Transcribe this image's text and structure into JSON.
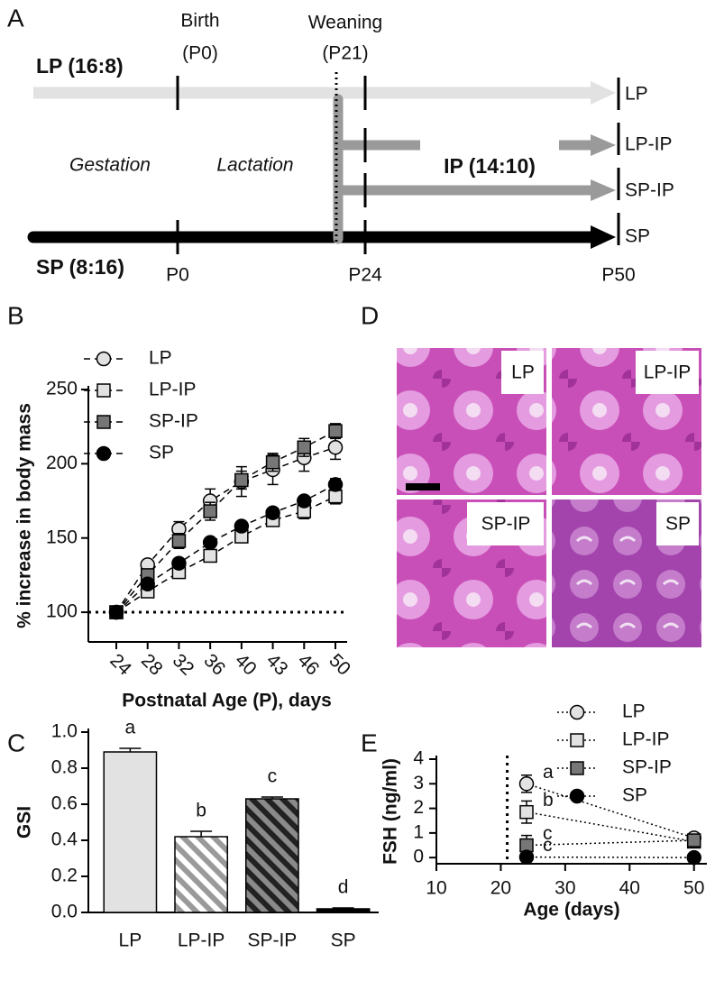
{
  "panel_labels": [
    "A",
    "B",
    "C",
    "D",
    "E"
  ],
  "diagram": {
    "birth": "Birth",
    "birth_day": "(P0)",
    "weaning": "Weaning",
    "weaning_day": "(P21)",
    "lp_photoperiod": "LP (16:8)",
    "gestation": "Gestation",
    "lactation": "Lactation",
    "ip_photoperiod": "IP (14:10)",
    "sp_photoperiod": "SP (8:16)",
    "timepoints": [
      "P0",
      "P24",
      "P50"
    ],
    "groups": [
      "LP",
      "LP-IP",
      "SP-IP",
      "SP"
    ]
  },
  "micrographs": {
    "labels": [
      "LP",
      "LP-IP",
      "SP-IP",
      "SP"
    ]
  },
  "chart_data": [
    {
      "type": "line",
      "ylabel": "% increase in body mass",
      "xlabel": "Postnatal Age (P), days",
      "categories": [
        "24",
        "28",
        "32",
        "36",
        "40",
        "43",
        "46",
        "50"
      ],
      "ylim": [
        80,
        250
      ],
      "yticks": [
        100,
        150,
        200,
        250
      ],
      "hline": 100,
      "line_style": "dashed",
      "series": [
        {
          "name": "LP",
          "color": "#e2e2e2",
          "marker": "circle",
          "values": [
            100,
            132,
            156,
            175,
            188,
            196,
            204,
            211
          ],
          "errors": [
            0,
            3,
            5,
            8,
            10,
            10,
            9,
            8
          ]
        },
        {
          "name": "LP-IP",
          "color": "#e2e2e2",
          "marker": "square",
          "values": [
            100,
            114,
            127,
            138,
            151,
            162,
            168,
            178
          ],
          "errors": [
            0,
            3,
            3,
            3,
            4,
            4,
            5,
            5
          ]
        },
        {
          "name": "SP-IP",
          "color": "#777777",
          "marker": "square",
          "values": [
            100,
            125,
            148,
            168,
            189,
            201,
            211,
            222
          ],
          "errors": [
            0,
            4,
            5,
            6,
            6,
            6,
            6,
            5
          ]
        },
        {
          "name": "SP",
          "color": "#000000",
          "marker": "circle",
          "values": [
            100,
            119,
            133,
            147,
            158,
            167,
            175,
            186
          ],
          "errors": [
            0,
            3,
            3,
            3,
            3,
            3,
            3,
            4
          ]
        }
      ]
    },
    {
      "type": "bar",
      "ylabel": "GSI",
      "categories": [
        "LP",
        "LP-IP",
        "SP-IP",
        "SP"
      ],
      "values": [
        0.89,
        0.42,
        0.63,
        0.02
      ],
      "errors": [
        0.02,
        0.03,
        0.01,
        0.005
      ],
      "annotations": [
        "a",
        "b",
        "c",
        "d"
      ],
      "colors": [
        "#e2e2e2",
        "#9a9a9a",
        "#222222",
        "#000000"
      ],
      "stripe_colors": [
        null,
        "#ffffff",
        "#8a8a8a",
        null
      ],
      "ylim": [
        0,
        1
      ],
      "yticks": [
        {
          "value": 0,
          "label": "0.0"
        },
        {
          "value": 0.2,
          "label": "0.2"
        },
        {
          "value": 0.4,
          "label": "0.4"
        },
        {
          "value": 0.6,
          "label": "0.6"
        },
        {
          "value": 0.8,
          "label": "0.8"
        },
        {
          "value": 1,
          "label": "1.0"
        }
      ]
    },
    {
      "type": "scatter",
      "ylabel": "FSH (ng/ml)",
      "xlabel": "Age (days)",
      "x": [
        24,
        50
      ],
      "xlim": [
        10,
        52
      ],
      "xticks": [
        10,
        20,
        30,
        40,
        50
      ],
      "ylim": [
        -0.25,
        4
      ],
      "yticks": [
        0,
        1,
        2,
        3,
        4
      ],
      "vline": 21,
      "line_style": "dotted",
      "series": [
        {
          "name": "LP",
          "color": "#e2e2e2",
          "marker": "circle",
          "values": [
            3.0,
            0.8
          ],
          "errors": [
            0.35,
            0.08
          ],
          "annotation": "a"
        },
        {
          "name": "LP-IP",
          "color": "#e2e2e2",
          "marker": "square",
          "values": [
            1.85,
            0.65
          ],
          "errors": [
            0.45,
            0.1
          ],
          "annotation": "b"
        },
        {
          "name": "SP-IP",
          "color": "#777777",
          "marker": "square",
          "values": [
            0.5,
            0.7
          ],
          "errors": [
            0.4,
            0.1
          ],
          "annotation": "c"
        },
        {
          "name": "SP",
          "color": "#000000",
          "marker": "circle",
          "values": [
            0.02,
            0.0
          ],
          "errors": [
            0.02,
            0.02
          ],
          "annotation": "c"
        }
      ]
    }
  ]
}
